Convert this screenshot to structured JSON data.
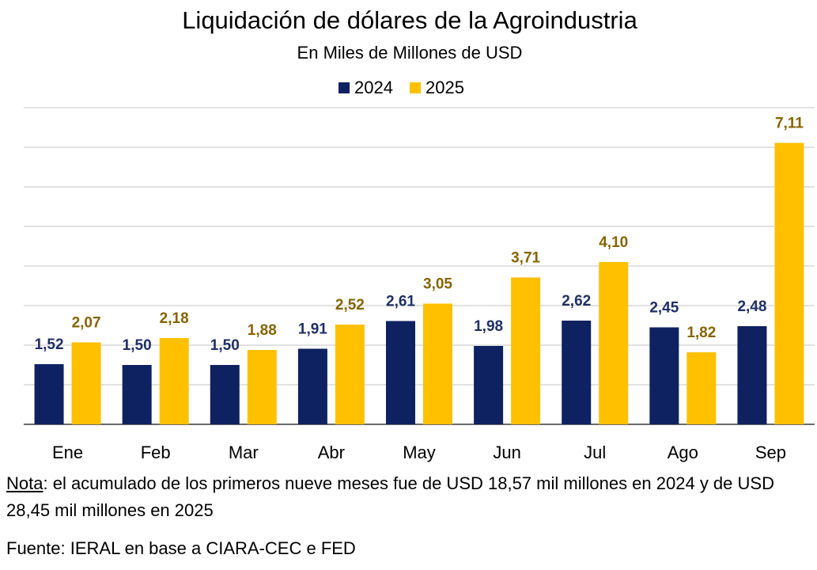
{
  "chart_data": {
    "type": "bar",
    "title": "Liquidación de dólares de la Agroindustria",
    "subtitle": "En Miles de Millones de USD",
    "categories": [
      "Ene",
      "Feb",
      "Mar",
      "Abr",
      "May",
      "Jun",
      "Jul",
      "Ago",
      "Sep"
    ],
    "series": [
      {
        "name": "2024",
        "color": "#0e2160",
        "label_color": "#1f2f66",
        "values": [
          1.52,
          1.5,
          1.5,
          1.91,
          2.61,
          1.98,
          2.62,
          2.45,
          2.48
        ],
        "value_labels": [
          "1,52",
          "1,50",
          "1,50",
          "1,91",
          "2,61",
          "1,98",
          "2,62",
          "2,45",
          "2,48"
        ]
      },
      {
        "name": "2025",
        "color": "#ffc000",
        "label_color": "#866400",
        "values": [
          2.07,
          2.18,
          1.88,
          2.52,
          3.05,
          3.71,
          4.1,
          1.82,
          7.11
        ],
        "value_labels": [
          "2,07",
          "2,18",
          "1,88",
          "2,52",
          "3,05",
          "3,71",
          "4,10",
          "1,82",
          "7,11"
        ]
      }
    ],
    "ylim": [
      0,
      8
    ],
    "yticks": [
      0,
      1,
      2,
      3,
      4,
      5,
      6,
      7,
      8
    ],
    "grid": true,
    "legend": "top"
  },
  "note": {
    "label": "Nota",
    "text": ": el acumulado de los primeros nueve meses fue de USD 18,57 mil millones en 2024 y de USD 28,45 mil millones en 2025"
  },
  "source": "Fuente: IERAL en base a CIARA-CEC e FED"
}
